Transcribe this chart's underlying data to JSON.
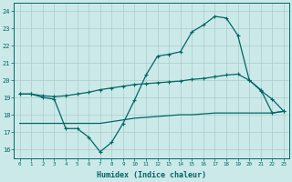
{
  "xlabel": "Humidex (Indice chaleur)",
  "bg_color": "#cce9e9",
  "grid_color": "#aacccc",
  "line_color": "#006666",
  "xlim": [
    -0.5,
    23.5
  ],
  "ylim": [
    15.5,
    24.5
  ],
  "xticks": [
    0,
    1,
    2,
    3,
    4,
    5,
    6,
    7,
    8,
    9,
    10,
    11,
    12,
    13,
    14,
    15,
    16,
    17,
    18,
    19,
    20,
    21,
    22,
    23
  ],
  "yticks": [
    16,
    17,
    18,
    19,
    20,
    21,
    22,
    23,
    24
  ],
  "curve_jagged_x": [
    0,
    1,
    2,
    3,
    4,
    5,
    6,
    7,
    8,
    9,
    10,
    11,
    12,
    13,
    14,
    15,
    16,
    17,
    18,
    19,
    20,
    21,
    22,
    23
  ],
  "curve_jagged_y": [
    19.2,
    19.2,
    19.0,
    18.9,
    17.2,
    17.2,
    16.7,
    15.85,
    16.4,
    17.5,
    18.85,
    20.3,
    21.4,
    21.5,
    21.65,
    22.8,
    23.2,
    23.7,
    23.6,
    22.6,
    20.0,
    19.4,
    18.9,
    18.2
  ],
  "curve_mid_x": [
    0,
    1,
    2,
    3,
    4,
    5,
    6,
    7,
    8,
    9,
    10,
    11,
    12,
    13,
    14,
    15,
    16,
    17,
    18,
    19,
    20,
    21,
    22,
    23
  ],
  "curve_mid_y": [
    19.2,
    19.2,
    19.1,
    19.05,
    19.1,
    19.2,
    19.3,
    19.45,
    19.55,
    19.65,
    19.75,
    19.8,
    19.85,
    19.9,
    19.95,
    20.05,
    20.1,
    20.2,
    20.3,
    20.35,
    20.0,
    19.45,
    18.1,
    18.2
  ],
  "curve_flat_x": [
    0,
    1,
    2,
    3,
    4,
    5,
    6,
    7,
    8,
    9,
    10,
    11,
    12,
    13,
    14,
    15,
    16,
    17,
    18,
    19,
    20,
    21,
    22,
    23
  ],
  "curve_flat_y": [
    17.5,
    17.5,
    17.5,
    17.5,
    17.5,
    17.5,
    17.5,
    17.5,
    17.6,
    17.7,
    17.8,
    17.85,
    17.9,
    17.95,
    18.0,
    18.0,
    18.05,
    18.1,
    18.1,
    18.1,
    18.1,
    18.1,
    18.1,
    18.2
  ]
}
